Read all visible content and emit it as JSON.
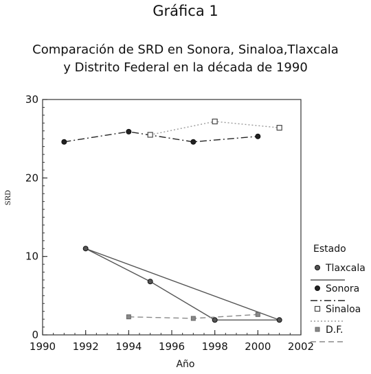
{
  "header": {
    "title": "Gráfica 1"
  },
  "chart_data": {
    "type": "line",
    "title_line1": "Comparación de SRD en Sonora, Sinaloa,Tlaxcala",
    "title_line2": "y Distrito Federal en la década de 1990",
    "xlabel": "Año",
    "ylabel": "SRD",
    "xlim": [
      1990,
      2002
    ],
    "ylim": [
      0,
      30
    ],
    "xticks": [
      1990,
      1992,
      1994,
      1996,
      1998,
      2000,
      2002
    ],
    "yticks": [
      0,
      10,
      20,
      30
    ],
    "grid": false,
    "legend_title": "Estado",
    "legend_position": "right",
    "series": [
      {
        "name": "Tlaxcala",
        "color": "#555555",
        "marker": "filled-circle",
        "line": "solid",
        "points": [
          [
            1992,
            11.0
          ],
          [
            1995,
            6.8
          ],
          [
            1998,
            1.9
          ],
          [
            2001,
            1.9
          ]
        ],
        "fit_points": [
          [
            1992,
            11.0
          ],
          [
            2001,
            1.9
          ]
        ]
      },
      {
        "name": "Sonora",
        "color": "#222222",
        "marker": "filled-circle",
        "line": "dashdot",
        "points": [
          [
            1991,
            24.6
          ],
          [
            1994,
            25.9
          ],
          [
            1997,
            24.6
          ],
          [
            2000,
            25.3
          ]
        ]
      },
      {
        "name": "Sinaloa",
        "color": "#999999",
        "marker": "open-square",
        "line": "dotted",
        "points": [
          [
            1995,
            25.5
          ],
          [
            1998,
            27.2
          ],
          [
            2001,
            26.4
          ]
        ]
      },
      {
        "name": "D.F.",
        "color": "#888888",
        "marker": "filled-square",
        "line": "dashed",
        "points": [
          [
            1994,
            2.3
          ],
          [
            1997,
            2.1
          ],
          [
            2000,
            2.6
          ]
        ]
      }
    ]
  }
}
